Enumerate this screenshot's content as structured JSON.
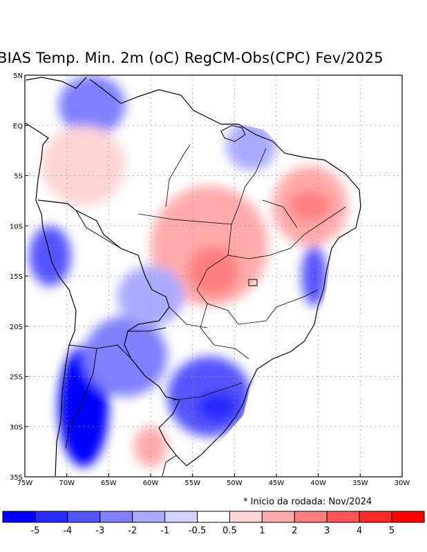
{
  "chart_data": {
    "type": "heatmap",
    "title": "BIAS Temp. Min. 2m (oC) RegCM-Obs(CPC) Fev/2025",
    "footnote": "* Inicio da rodada: Nov/2024",
    "x_ticks": [
      "75W",
      "70W",
      "65W",
      "60W",
      "55W",
      "50W",
      "45W",
      "40W",
      "35W",
      "30W"
    ],
    "x_values": [
      -75,
      -70,
      -65,
      -60,
      -55,
      -50,
      -45,
      -40,
      -35,
      -30
    ],
    "y_ticks": [
      "5N",
      "EQ",
      "5S",
      "10S",
      "15S",
      "20S",
      "25S",
      "30S",
      "35S"
    ],
    "y_values": [
      5,
      0,
      -5,
      -10,
      -15,
      -20,
      -25,
      -30,
      -35
    ],
    "xlim": [
      -75,
      -30
    ],
    "ylim": [
      -35,
      5
    ],
    "grid": true,
    "colorbar": {
      "labels": [
        "-5",
        "-4",
        "-3",
        "-2",
        "-1",
        "-0.5",
        "0.5",
        "1",
        "2",
        "3",
        "4",
        "5"
      ],
      "colors": [
        "#0000ff",
        "#2a2aff",
        "#5555ff",
        "#7f7fff",
        "#aaaaff",
        "#d4d4ff",
        "#ffffff",
        "#ffd4d4",
        "#ffaaaa",
        "#ff7f7f",
        "#ff5555",
        "#ff2a2a",
        "#ff0000"
      ]
    },
    "regions": [
      {
        "name": "north-cold-patch",
        "lon": -67,
        "lat": 2,
        "rx": 4,
        "ry": 3,
        "color": "#7f7fff"
      },
      {
        "name": "west-amazon-warm",
        "lon": -68,
        "lat": -4,
        "rx": 5,
        "ry": 4,
        "color": "#ffd4d4"
      },
      {
        "name": "central-warm",
        "lon": -53,
        "lat": -12,
        "rx": 7,
        "ry": 6,
        "color": "#ffaaaa"
      },
      {
        "name": "central-warm-core",
        "lon": -52.5,
        "lat": -14.5,
        "rx": 3,
        "ry": 2.5,
        "color": "#ff7f7f"
      },
      {
        "name": "northeast-warm",
        "lon": -41,
        "lat": -8,
        "rx": 4.5,
        "ry": 4,
        "color": "#ffaaaa"
      },
      {
        "name": "northeast-warm-core",
        "lon": -41,
        "lat": -8,
        "rx": 2.5,
        "ry": 1.5,
        "color": "#ff7f7f"
      },
      {
        "name": "east-coast-cold",
        "lon": -40.5,
        "lat": -15,
        "rx": 1.5,
        "ry": 3,
        "color": "#5555ff"
      },
      {
        "name": "andes-cold",
        "lon": -68,
        "lat": -28,
        "rx": 3,
        "ry": 6,
        "color": "#0000ff"
      },
      {
        "name": "south-cold",
        "lon": -53,
        "lat": -27,
        "rx": 5,
        "ry": 4,
        "color": "#5555ff"
      },
      {
        "name": "south-cold-core",
        "lon": -52,
        "lat": -28,
        "rx": 2.5,
        "ry": 1.5,
        "color": "#2a2aff"
      },
      {
        "name": "chaco-cold",
        "lon": -63,
        "lat": -23,
        "rx": 5,
        "ry": 4,
        "color": "#7f7fff"
      },
      {
        "name": "argentina-warm",
        "lon": -60,
        "lat": -32,
        "rx": 2,
        "ry": 2,
        "color": "#ffaaaa"
      },
      {
        "name": "west-cold-strip",
        "lon": -72,
        "lat": -13,
        "rx": 2.5,
        "ry": 3,
        "color": "#5555ff"
      },
      {
        "name": "pantanal-cold",
        "lon": -60,
        "lat": -17,
        "rx": 4,
        "ry": 3,
        "color": "#aaaaff"
      },
      {
        "name": "north-east-cold",
        "lon": -48,
        "lat": -2,
        "rx": 3,
        "ry": 2.5,
        "color": "#aaaaff"
      }
    ]
  }
}
